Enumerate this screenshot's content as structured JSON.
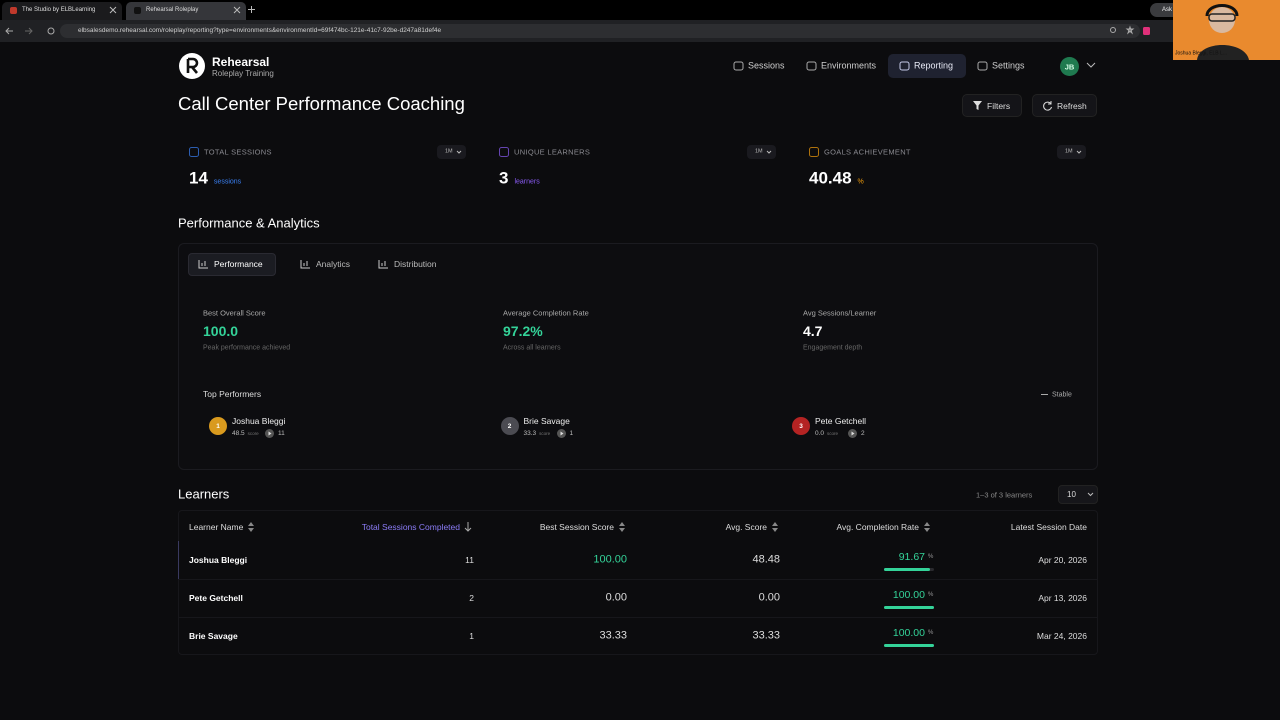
{
  "browser": {
    "tabs": [
      "The Studio by ELBLearning",
      "Rehearsal Roleplay"
    ],
    "active_tab": 1,
    "url": "elbsalesdemo.rehearsal.com/roleplay/reporting?type=environments&environmentId=69f474bc-121e-41c7-92be-d247a81def4e",
    "extension_label": "Ask",
    "webcam_caption": "Joshua Bleggi, ELB L..."
  },
  "nav": {
    "brand": "Rehearsal",
    "tagline": "Roleplay Training",
    "items": [
      "Sessions",
      "Environments",
      "Reporting",
      "Settings"
    ],
    "active_item": 2,
    "avatar": "JB"
  },
  "header": {
    "title": "Call Center Performance Coaching",
    "buttons": [
      "Filters",
      "Refresh"
    ]
  },
  "stats": [
    {
      "label": "TOTAL SESSIONS",
      "period": "1M",
      "value": "14",
      "unit": "sessions",
      "color": "#3b82f6"
    },
    {
      "label": "UNIQUE LEARNERS",
      "period": "1M",
      "value": "3",
      "unit": "learners",
      "color": "#8b5cf6"
    },
    {
      "label": "GOALS ACHIEVEMENT",
      "period": "1M",
      "value": "40.48",
      "unit": "%",
      "color": "#f59e0b"
    }
  ],
  "analytics": {
    "title": "Performance & Analytics",
    "tabs": [
      "Performance",
      "Analytics",
      "Distribution"
    ],
    "active_tab": 0,
    "metrics": [
      {
        "label": "Best Overall Score",
        "value": "100.0",
        "caption": "Peak performance achieved",
        "color": "#34d399"
      },
      {
        "label": "Average Completion Rate",
        "value": "97.2%",
        "caption": "Across all learners",
        "color": "#34d399"
      },
      {
        "label": "Avg Sessions/Learner",
        "value": "4.7",
        "caption": "Engagement depth",
        "color": "#ffffff"
      }
    ],
    "top_title": "Top Performers",
    "trend": "Stable",
    "performers": [
      {
        "rank": "1",
        "name": "Joshua Bleggi",
        "score": "48.5",
        "score_label": "score",
        "sessions": "11",
        "color": "#d99a1e"
      },
      {
        "rank": "2",
        "name": "Brie Savage",
        "score": "33.3",
        "score_label": "score",
        "sessions": "1",
        "color": "#4b4b52"
      },
      {
        "rank": "3",
        "name": "Pete Getchell",
        "score": "0.0",
        "score_label": "score",
        "sessions": "2",
        "color": "#b42323"
      }
    ]
  },
  "learners": {
    "title": "Learners",
    "count": "1–3 of 3 learners",
    "page_size": "10",
    "columns": [
      "Learner Name",
      "Total Sessions Completed",
      "Best Session Score",
      "Avg. Score",
      "Avg. Completion Rate",
      "Latest Session Date"
    ],
    "sorted_column": 1,
    "rows": [
      {
        "name": "Joshua Bleggi",
        "sessions": "11",
        "best": "100.00",
        "avg": "48.48",
        "completion": 91.67,
        "unit": "%",
        "date": "Apr 20, 2026"
      },
      {
        "name": "Pete Getchell",
        "sessions": "2",
        "best": "0.00",
        "avg": "0.00",
        "completion": 100.0,
        "completion_label": "100.00",
        "unit": "%",
        "date": "Apr 13, 2026"
      },
      {
        "name": "Brie Savage",
        "sessions": "1",
        "best": "33.33",
        "avg": "33.33",
        "completion": 100.0,
        "completion_label": "100.00",
        "unit": "%",
        "date": "Mar 24, 2026"
      }
    ]
  }
}
